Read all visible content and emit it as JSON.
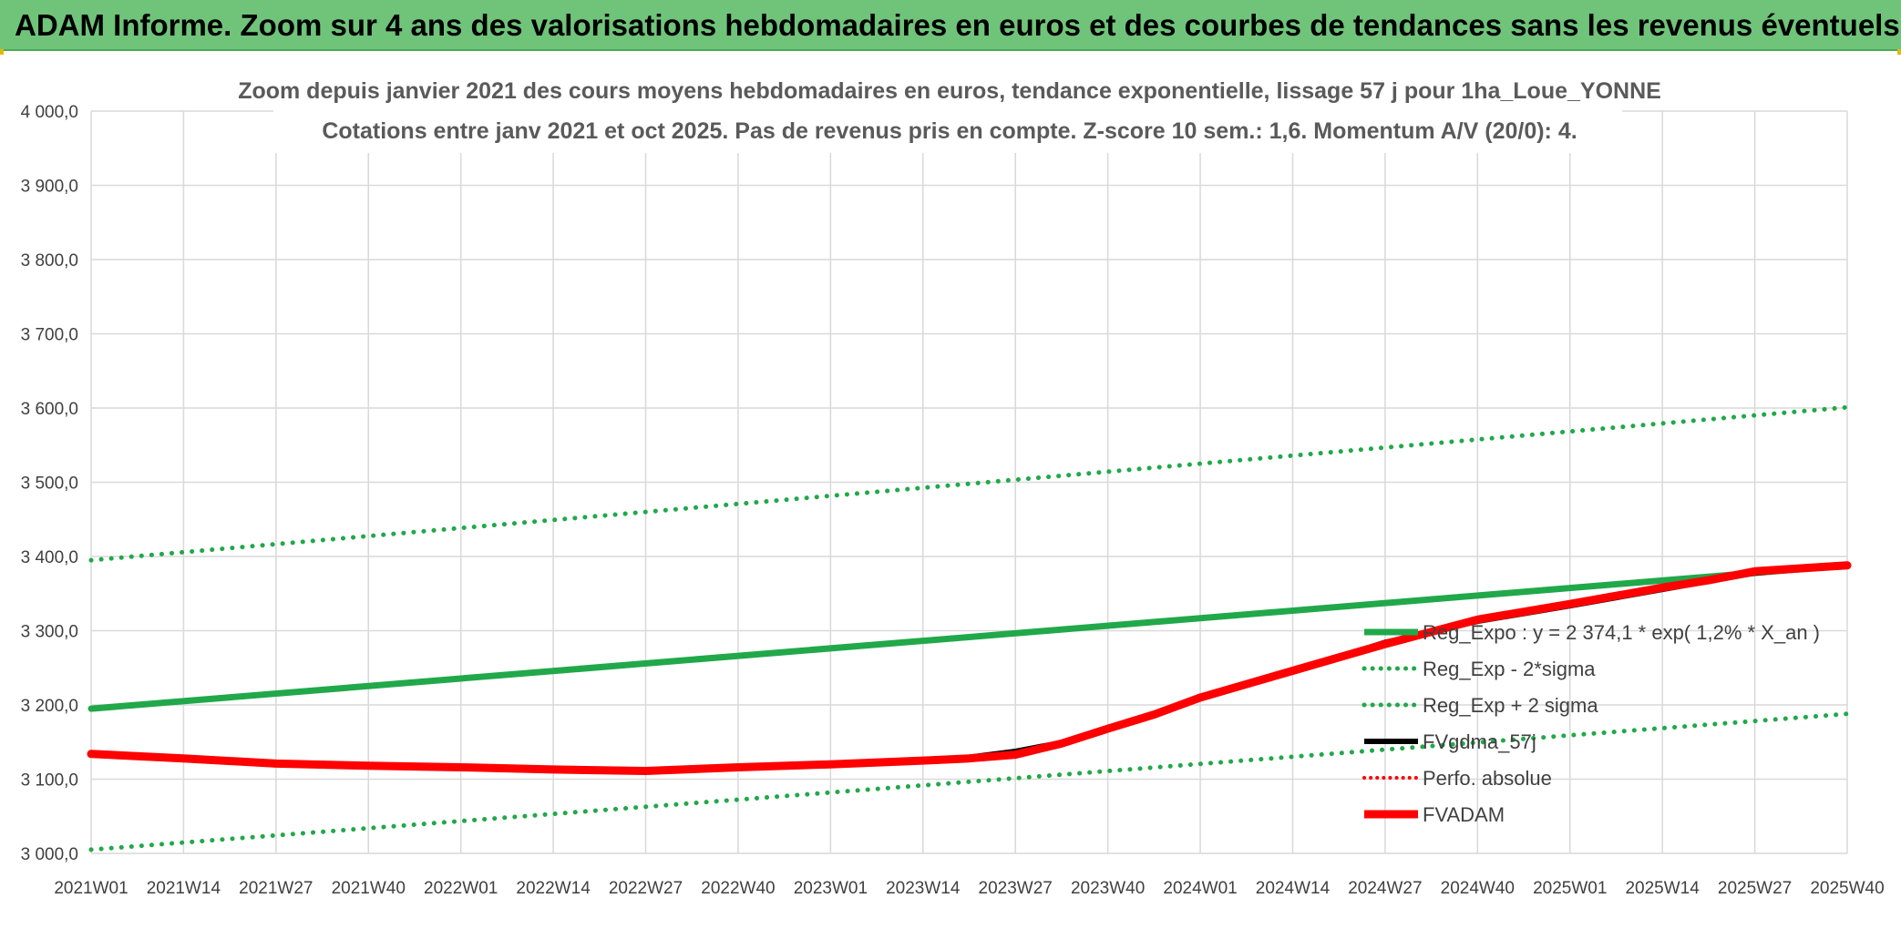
{
  "header": {
    "title": "ADAM Informe. Zoom sur 4 ans des valorisations hebdomadaires en euros et des courbes de tendances sans les revenus éventuels"
  },
  "colors": {
    "header_bg": "#6fc47a",
    "green": "#21a84a",
    "red": "#ff0000",
    "black": "#000000",
    "grid": "#d9d9d9"
  },
  "chart_data": {
    "type": "line",
    "title_line1": "Zoom depuis janvier 2021 des cours moyens hebdomadaires en euros, tendance exponentielle, lissage 57 j pour 1ha_Loue_YONNE",
    "title_line2": "Cotations entre janv 2021 et oct 2025. Pas de revenus pris en compte. Z-score 10 sem.: 1,6. Momentum A/V (20/0): 4.",
    "xlabel": "",
    "ylabel": "",
    "ylim": [
      3000,
      4000
    ],
    "y_ticks": [
      "3 000,0",
      "3 100,0",
      "3 200,0",
      "3 300,0",
      "3 400,0",
      "3 500,0",
      "3 600,0",
      "3 700,0",
      "3 800,0",
      "3 900,0",
      "4 000,0"
    ],
    "x_ticks": [
      "2021W01",
      "2021W14",
      "2021W27",
      "2021W40",
      "2022W01",
      "2022W14",
      "2022W27",
      "2022W40",
      "2023W01",
      "2023W14",
      "2023W27",
      "2023W40",
      "2024W01",
      "2024W14",
      "2024W27",
      "2024W40",
      "2025W01",
      "2025W14",
      "2025W27",
      "2025W40"
    ],
    "grid": true,
    "legend_position": "right",
    "series": [
      {
        "name": "Reg_Expo : y = 2 374,1 * exp( 1,2% *  X_an )",
        "style": "solid-thick",
        "color": "#21a84a",
        "points": [
          [
            0,
            3195
          ],
          [
            19,
            3388
          ]
        ]
      },
      {
        "name": "Reg_Exp - 2*sigma",
        "style": "dotted",
        "color": "#21a84a",
        "points": [
          [
            0,
            3005
          ],
          [
            19,
            3188
          ]
        ]
      },
      {
        "name": "Reg_Exp + 2 sigma",
        "style": "dotted",
        "color": "#21a84a",
        "points": [
          [
            0,
            3395
          ],
          [
            19,
            3601
          ]
        ]
      },
      {
        "name": "FVgdma_57j",
        "style": "solid",
        "color": "#000000",
        "points": [
          [
            0,
            3134
          ],
          [
            1,
            3128
          ],
          [
            2,
            3121
          ],
          [
            3,
            3118
          ],
          [
            4,
            3116
          ],
          [
            5,
            3113
          ],
          [
            6,
            3111
          ],
          [
            7,
            3116
          ],
          [
            8,
            3120
          ],
          [
            9,
            3126
          ],
          [
            9.5,
            3130
          ],
          [
            10,
            3138
          ],
          [
            10.5,
            3150
          ],
          [
            11,
            3168
          ],
          [
            11.5,
            3185
          ],
          [
            12,
            3208
          ],
          [
            13,
            3245
          ],
          [
            14,
            3285
          ],
          [
            14.5,
            3298
          ],
          [
            15,
            3312
          ],
          [
            16,
            3333
          ],
          [
            17,
            3355
          ],
          [
            18,
            3377
          ],
          [
            19,
            3388
          ]
        ]
      },
      {
        "name": "Perfo. absolue",
        "style": "dotted",
        "color": "#ff0000",
        "points": []
      },
      {
        "name": "FVADAM",
        "style": "solid-thick",
        "color": "#ff0000",
        "points": [
          [
            0,
            3134
          ],
          [
            1,
            3128
          ],
          [
            2,
            3121
          ],
          [
            3,
            3118
          ],
          [
            4,
            3116
          ],
          [
            5,
            3113
          ],
          [
            6,
            3111
          ],
          [
            7,
            3116
          ],
          [
            8,
            3120
          ],
          [
            9,
            3125
          ],
          [
            9.5,
            3128
          ],
          [
            10,
            3133
          ],
          [
            10.5,
            3148
          ],
          [
            11,
            3168
          ],
          [
            11.5,
            3187
          ],
          [
            12,
            3210
          ],
          [
            12.5,
            3228
          ],
          [
            13,
            3246
          ],
          [
            13.5,
            3264
          ],
          [
            14,
            3282
          ],
          [
            15,
            3315
          ],
          [
            16,
            3336
          ],
          [
            17,
            3358
          ],
          [
            17.5,
            3368
          ],
          [
            18,
            3380
          ],
          [
            18.5,
            3384
          ],
          [
            19,
            3388
          ]
        ]
      }
    ]
  }
}
